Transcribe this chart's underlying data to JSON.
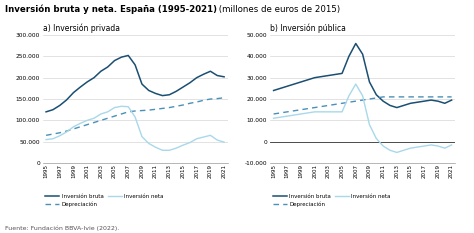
{
  "title_bold": "Inversión bruta y neta. España (1995-2021)",
  "title_normal": " (millones de euros de 2015)",
  "subtitle_a": "a) Inversión privada",
  "subtitle_b": "b) Inversión pública",
  "source": "Fuente: Fundación BBVA-Ivie (2022).",
  "years": [
    1995,
    1996,
    1997,
    1998,
    1999,
    2000,
    2001,
    2002,
    2003,
    2004,
    2005,
    2006,
    2007,
    2008,
    2009,
    2010,
    2011,
    2012,
    2013,
    2014,
    2015,
    2016,
    2017,
    2018,
    2019,
    2020,
    2021
  ],
  "priv_bruta": [
    120000,
    125000,
    135000,
    148000,
    165000,
    178000,
    190000,
    200000,
    215000,
    225000,
    240000,
    248000,
    252000,
    230000,
    185000,
    170000,
    163000,
    158000,
    160000,
    168000,
    178000,
    188000,
    200000,
    208000,
    215000,
    205000,
    202000
  ],
  "priv_deprec": [
    65000,
    68000,
    71000,
    75000,
    80000,
    85000,
    90000,
    95000,
    100000,
    105000,
    110000,
    115000,
    120000,
    122000,
    123000,
    124000,
    126000,
    128000,
    130000,
    133000,
    136000,
    140000,
    143000,
    147000,
    150000,
    151000,
    153000
  ],
  "priv_neta": [
    55000,
    57000,
    64000,
    73000,
    85000,
    93000,
    100000,
    105000,
    115000,
    120000,
    130000,
    133000,
    132000,
    108000,
    62000,
    46000,
    37000,
    30000,
    30000,
    35000,
    42000,
    48000,
    57000,
    61000,
    65000,
    54000,
    49000
  ],
  "pub_bruta": [
    24000,
    25000,
    26000,
    27000,
    28000,
    29000,
    30000,
    30500,
    31000,
    31500,
    32000,
    40000,
    46000,
    41000,
    28000,
    22000,
    19000,
    17000,
    16000,
    17000,
    18000,
    18500,
    19000,
    19500,
    19000,
    18000,
    19500
  ],
  "pub_deprec": [
    13000,
    13500,
    14000,
    14500,
    15000,
    15500,
    16000,
    16500,
    17000,
    17500,
    18000,
    18500,
    19000,
    19500,
    20000,
    20500,
    21000,
    21000,
    21000,
    21000,
    21000,
    21000,
    21000,
    21000,
    21000,
    21000,
    21000
  ],
  "pub_neta": [
    11000,
    11500,
    12000,
    12500,
    13000,
    13500,
    14000,
    14000,
    14000,
    14000,
    14000,
    21500,
    27000,
    21500,
    8000,
    1500,
    -2000,
    -4000,
    -5000,
    -4000,
    -3000,
    -2500,
    -2000,
    -1500,
    -2000,
    -3000,
    -1500
  ],
  "color_bruta": "#1a4f72",
  "color_deprec": "#4a90b8",
  "color_neta": "#a8d8ea",
  "ylim_priv": [
    0,
    300000
  ],
  "yticks_priv": [
    0,
    50000,
    100000,
    150000,
    200000,
    250000,
    300000
  ],
  "ylim_pub": [
    -10000,
    50000
  ],
  "yticks_pub": [
    -10000,
    0,
    10000,
    20000,
    30000,
    40000,
    50000
  ]
}
